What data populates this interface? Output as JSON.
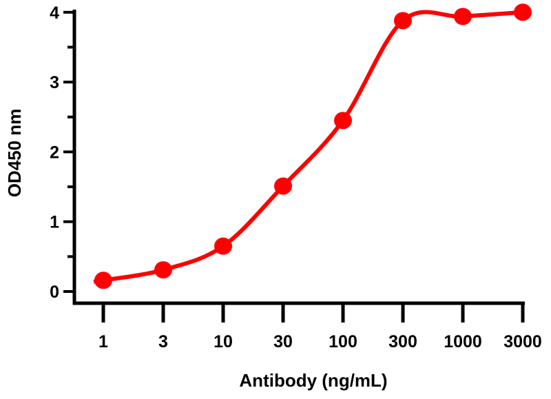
{
  "chart_data": {
    "type": "line",
    "title": "",
    "xlabel": "Antibody (ng/mL)",
    "ylabel": "OD450 nm",
    "x_scale": "log (evenly spaced categories)",
    "categories": [
      "1",
      "3",
      "10",
      "30",
      "100",
      "300",
      "1000",
      "3000"
    ],
    "x": [
      1,
      3,
      10,
      30,
      100,
      300,
      1000,
      3000
    ],
    "y": [
      0.16,
      0.31,
      0.65,
      1.51,
      2.45,
      3.88,
      3.94,
      4.0
    ],
    "ylim": [
      0,
      4
    ],
    "yticks": [
      "0",
      "1",
      "2",
      "3",
      "4"
    ],
    "y_minor_step": 0.5,
    "grid": false,
    "legend": "none",
    "series_color": "#ff0000",
    "marker": "filled-circle"
  }
}
